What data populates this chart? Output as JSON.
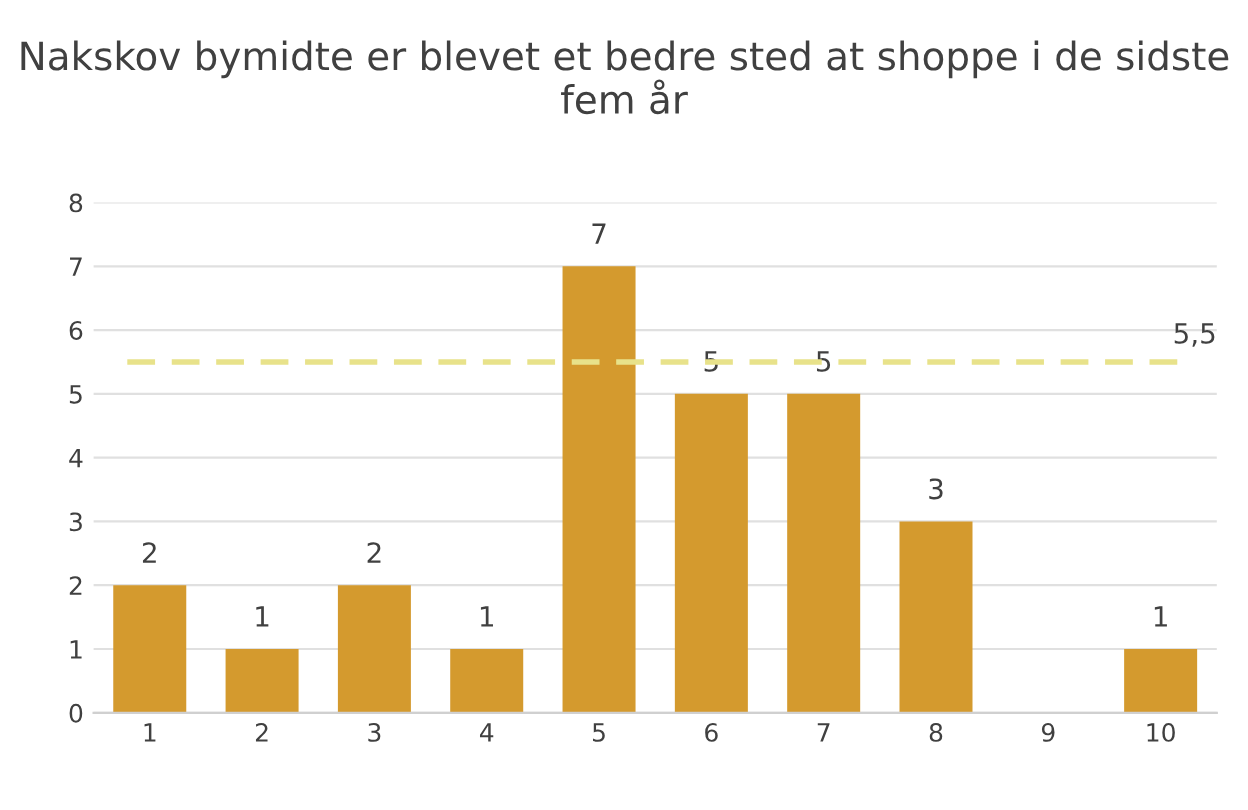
{
  "chart_data": {
    "type": "bar",
    "title": "Nakskov bymidte er blevet et bedre sted at shoppe i de sidste fem år",
    "categories": [
      "1",
      "2",
      "3",
      "4",
      "5",
      "6",
      "7",
      "8",
      "9",
      "10"
    ],
    "values": [
      2,
      1,
      2,
      1,
      7,
      5,
      5,
      3,
      0,
      1
    ],
    "value_labels": [
      "2",
      "1",
      "2",
      "1",
      "7",
      "5",
      "5",
      "3",
      null,
      "1"
    ],
    "color": "#d49a2e",
    "ylim": [
      0,
      8
    ],
    "yticks": [
      0,
      1,
      2,
      3,
      4,
      5,
      6,
      7,
      8
    ],
    "grid": "y",
    "legend": false,
    "ref_lines": [
      {
        "axis": "y",
        "value": 5.5,
        "label": "5,5",
        "color": "#e8e28a",
        "line_style": "dashed"
      }
    ]
  }
}
